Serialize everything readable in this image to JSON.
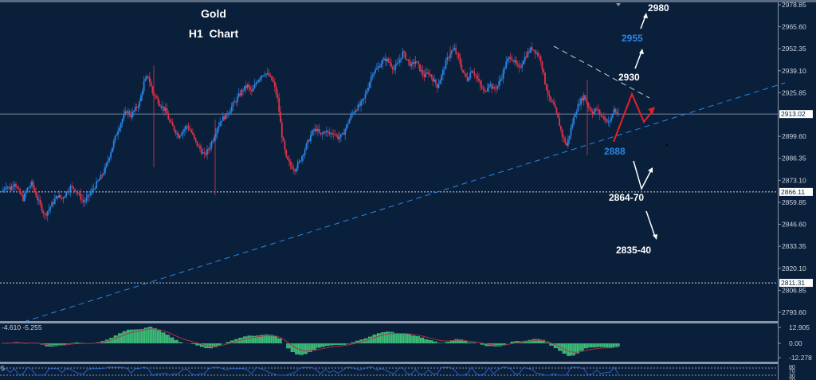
{
  "chart_data": {
    "type": "candlestick",
    "title": "Gold",
    "subtitle": "H1  Chart",
    "instrument": "Gold",
    "timeframe": "H1",
    "xlabel": "",
    "ylabel": "",
    "ylim": [
      2793.6,
      2978.85
    ],
    "grid": false,
    "y_ticks": [
      "2978.85",
      "2965.60",
      "2952.35",
      "2939.10",
      "2925.85",
      "2899.60",
      "2886.35",
      "2873.10",
      "2859.85",
      "2846.60",
      "2833.35",
      "2820.10",
      "2806.85",
      "2793.60"
    ],
    "price_tags": [
      {
        "value": "2913.02",
        "price": 2913.02,
        "style": "solid"
      },
      {
        "value": "2866.11",
        "price": 2866.11,
        "style": "dotted"
      },
      {
        "value": "2811.31",
        "price": 2811.31,
        "style": "dotted"
      }
    ],
    "colors": {
      "background": "#0a1f3a",
      "bull": "#2a86e6",
      "bear": "#e0344a",
      "axis": "#8a97a8",
      "osc_hist": "#3ec27a",
      "osc_signal": "#b0304a",
      "rsi_line": "#2a5fc0",
      "forecast_path": "#e8202a",
      "trendline_support": "#2a86e6",
      "trendline_resistance": "#c9cfd8"
    },
    "close_path": [
      2866,
      2870,
      2868,
      2872,
      2866,
      2862,
      2868,
      2871,
      2864,
      2858,
      2852,
      2856,
      2860,
      2864,
      2862,
      2866,
      2869,
      2868,
      2864,
      2860,
      2863,
      2867,
      2871,
      2875,
      2880,
      2888,
      2896,
      2904,
      2910,
      2915,
      2912,
      2916,
      2920,
      2932,
      2936,
      2926,
      2922,
      2918,
      2915,
      2908,
      2904,
      2900,
      2903,
      2906,
      2902,
      2896,
      2892,
      2888,
      2892,
      2898,
      2905,
      2910,
      2912,
      2916,
      2920,
      2924,
      2928,
      2930,
      2926,
      2932,
      2936,
      2938,
      2936,
      2932,
      2922,
      2900,
      2886,
      2882,
      2880,
      2884,
      2890,
      2896,
      2902,
      2904,
      2900,
      2903,
      2901,
      2902,
      2899,
      2900,
      2906,
      2912,
      2916,
      2918,
      2922,
      2930,
      2938,
      2940,
      2944,
      2946,
      2944,
      2940,
      2944,
      2950,
      2946,
      2942,
      2945,
      2940,
      2936,
      2938,
      2934,
      2930,
      2936,
      2944,
      2950,
      2952,
      2946,
      2938,
      2934,
      2940,
      2936,
      2930,
      2926,
      2932,
      2928,
      2930,
      2936,
      2944,
      2948,
      2944,
      2940,
      2946,
      2950,
      2953,
      2950,
      2946,
      2932,
      2922,
      2918,
      2910,
      2900,
      2894,
      2904,
      2914,
      2920,
      2924,
      2918,
      2914,
      2916,
      2912,
      2910,
      2908,
      2916,
      2912
    ],
    "oscillator": {
      "label": "-4.610 -5.255",
      "y_ticks": [
        "12.905",
        "0.00",
        "-12.278"
      ]
    },
    "rsi": {
      "y_ticks": [
        "80",
        "70",
        "30",
        "20"
      ],
      "label": "5"
    },
    "annotations": [
      {
        "text": "2980",
        "color": "#ffffff"
      },
      {
        "text": "2955",
        "color": "#2a86e6"
      },
      {
        "text": "2930",
        "color": "#ffffff"
      },
      {
        "text": "2888",
        "color": "#2a86e6"
      },
      {
        "text": "2864-70",
        "color": "#ffffff"
      },
      {
        "text": "2835-40",
        "color": "#ffffff"
      }
    ]
  }
}
